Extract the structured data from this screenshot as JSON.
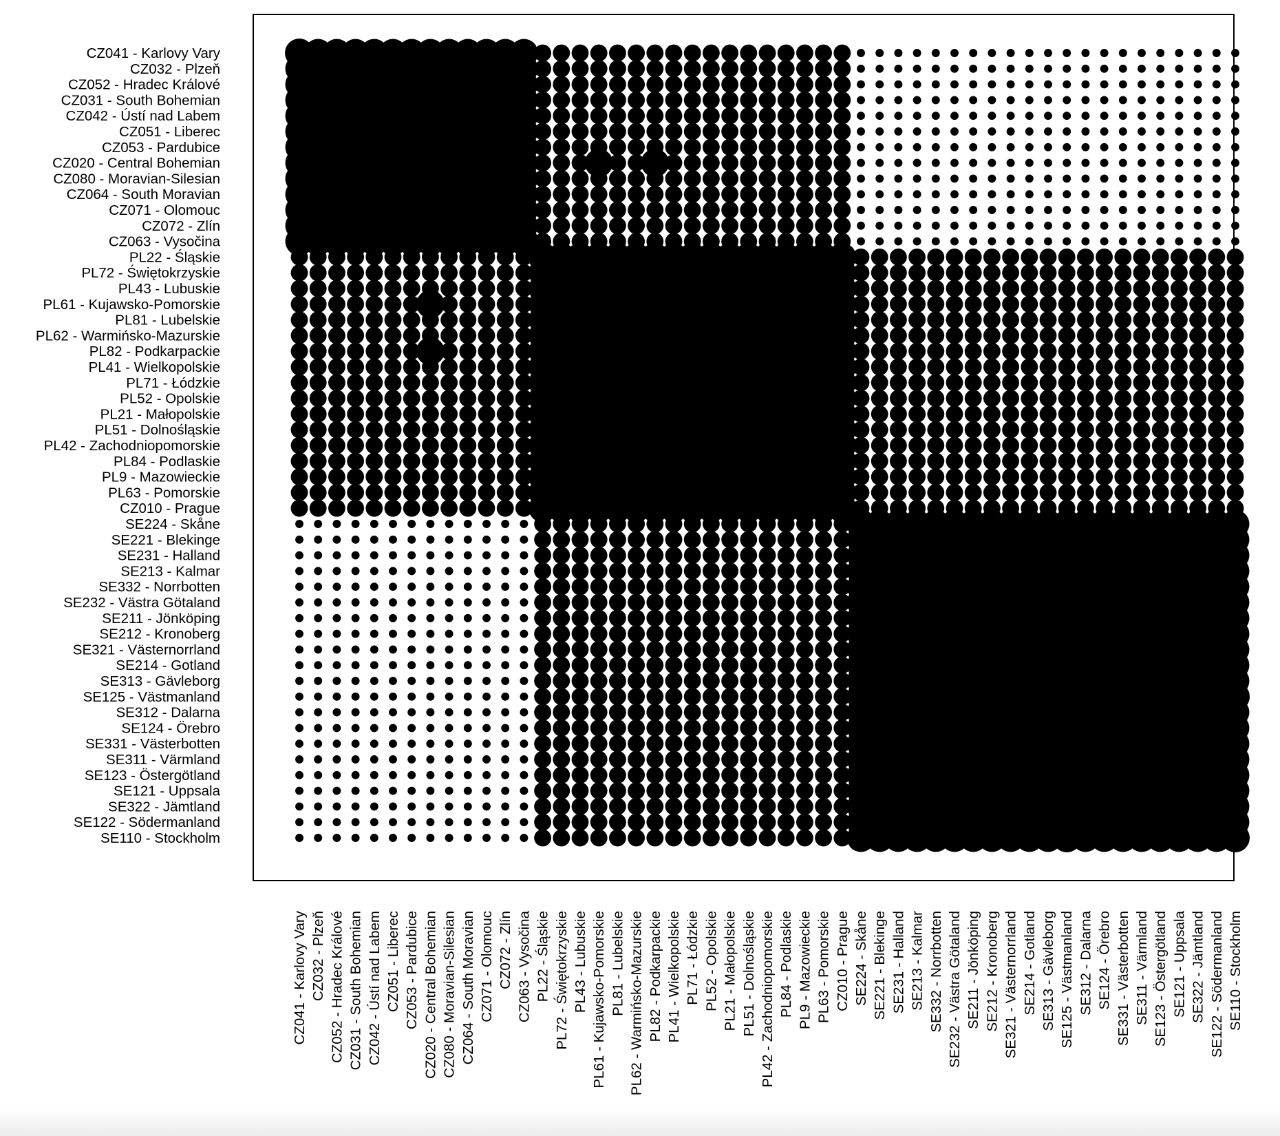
{
  "chart_data": {
    "type": "heatmap",
    "title": "",
    "xlabel": "",
    "ylabel": "",
    "marker": "circle-size",
    "color": "#000000",
    "legend": "none",
    "grid": false,
    "categories": [
      "CZ041 - Karlovy Vary",
      "CZ032 - Plzeň",
      "CZ052 - Hradec Králové",
      "CZ031 - South Bohemian",
      "CZ042 - Ústí nad Labem",
      "CZ051 - Liberec",
      "CZ053 - Pardubice",
      "CZ020 - Central Bohemian",
      "CZ080 - Moravian-Silesian",
      "CZ064 - South Moravian",
      "CZ071 - Olomouc",
      "CZ072 - Zlín",
      "CZ063 - Vysočina",
      "PL22 - Śląskie",
      "PL72 - Świętokrzyskie",
      "PL43 - Lubuskie",
      "PL61 - Kujawsko-Pomorskie",
      "PL81 - Lubelskie",
      "PL62 - Warmińsko-Mazurskie",
      "PL82 - Podkarpackie",
      "PL41 - Wielkopolskie",
      "PL71 - Łódzkie",
      "PL52 - Opolskie",
      "PL21 - Małopolskie",
      "PL51 - Dolnośląskie",
      "PL42 - Zachodniopomorskie",
      "PL84 - Podlaskie",
      "PL9 - Mazowieckie",
      "PL63 - Pomorskie",
      "CZ010 - Prague",
      "SE224 - Skåne",
      "SE221 - Blekinge",
      "SE231 - Halland",
      "SE213 - Kalmar",
      "SE332 - Norrbotten",
      "SE232 - Västra Götaland",
      "SE211 - Jönköping",
      "SE212 - Kronoberg",
      "SE321 - Västernorrland",
      "SE214 - Gotland",
      "SE313 - Gävleborg",
      "SE125 - Västmanland",
      "SE312 - Dalarna",
      "SE124 - Örebro",
      "SE331 - Västerbotten",
      "SE311 - Värmland",
      "SE123 - Östergötland",
      "SE121 - Uppsala",
      "SE322 - Jämtland",
      "SE122 - Södermanland",
      "SE110 - Stockholm"
    ],
    "clusters": [
      {
        "name": "CZ",
        "start": 0,
        "end": 12
      },
      {
        "name": "PL",
        "start": 13,
        "end": 29
      },
      {
        "name": "SE",
        "start": 30,
        "end": 50
      }
    ],
    "value_scale": [
      0,
      1
    ],
    "value_model": {
      "diagonal": 1.0,
      "within_cluster": 0.95,
      "neighbour_cluster": 0.35,
      "distant_cluster": 0.08
    },
    "highlighted_cells": [
      {
        "row": "CZ020 - Central Bohemian",
        "col": "PL61 - Kujawsko-Pomorskie",
        "value": 0.95
      },
      {
        "row": "CZ020 - Central Bohemian",
        "col": "PL82 - Podkarpackie",
        "value": 0.95
      },
      {
        "row": "PL61 - Kujawsko-Pomorskie",
        "col": "CZ020 - Central Bohemian",
        "value": 0.95
      },
      {
        "row": "PL82 - Podkarpackie",
        "col": "CZ020 - Central Bohemian",
        "value": 0.95
      },
      {
        "row": "SE221 - Blekinge",
        "col": "SE214 - Gotland",
        "value": 0.95
      },
      {
        "row": "SE214 - Gotland",
        "col": "SE221 - Blekinge",
        "value": 0.95
      },
      {
        "row": "SE125 - Västmanland",
        "col": "SE110 - Stockholm",
        "value": 1.0
      },
      {
        "row": "SE110 - Stockholm",
        "col": "SE125 - Västmanland",
        "value": 1.0
      },
      {
        "row": "SE110 - Stockholm",
        "col": "SE110 - Stockholm",
        "value": 1.0
      }
    ]
  }
}
